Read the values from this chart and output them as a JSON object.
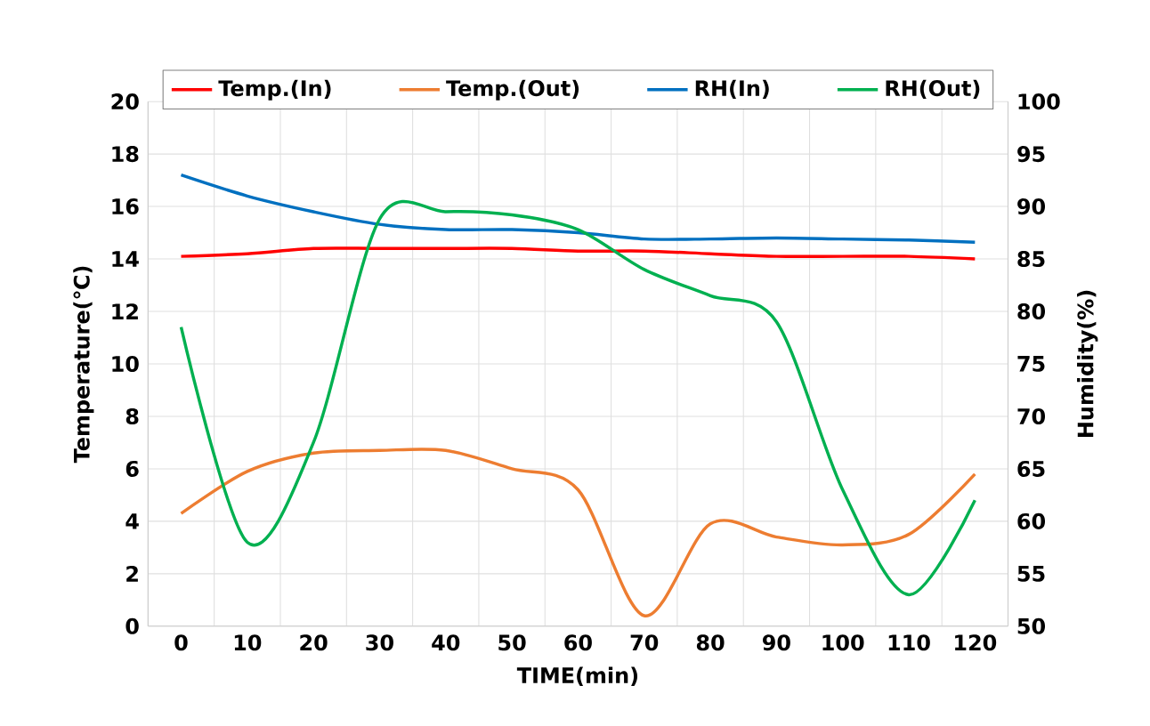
{
  "chart_data": {
    "type": "line",
    "xlabel": "TIME(min)",
    "ylabel": "Temperature(℃)",
    "y2label": "Humidity(%)",
    "categories": [
      "0",
      "10",
      "20",
      "30",
      "40",
      "50",
      "60",
      "70",
      "80",
      "90",
      "100",
      "110",
      "120"
    ],
    "series": [
      {
        "name": "Temp.(In)",
        "color": "#ff0000",
        "values": [
          14.1,
          14.2,
          14.4,
          14.4,
          14.4,
          14.4,
          14.3,
          14.3,
          14.2,
          14.1,
          14.1,
          14.1,
          14.0
        ]
      },
      {
        "name": "Temp.(Out)",
        "color": "#ed7d31",
        "values": [
          4.3,
          5.9,
          6.6,
          6.7,
          6.7,
          6.0,
          5.2,
          0.4,
          3.9,
          3.4,
          3.1,
          3.5,
          5.8
        ]
      },
      {
        "name": "RH(In)",
        "color": "#0070c0",
        "axis": "y2",
        "values": [
          93.0,
          91.0,
          89.5,
          88.3,
          87.8,
          87.8,
          87.5,
          86.9,
          86.9,
          87.0,
          86.9,
          86.8,
          86.6
        ]
      },
      {
        "name": "RH(Out)",
        "color": "#00b050",
        "axis": "y2",
        "values": [
          78.5,
          58.0,
          67.5,
          88.8,
          89.5,
          89.2,
          87.8,
          84.0,
          81.5,
          79.0,
          63.0,
          53.0,
          62.0
        ]
      }
    ],
    "ylim": [
      0,
      20
    ],
    "yticks": [
      0,
      2,
      4,
      6,
      8,
      10,
      12,
      14,
      16,
      18,
      20
    ],
    "y2lim": [
      50,
      100
    ],
    "y2ticks": [
      50,
      55,
      60,
      65,
      70,
      75,
      80,
      85,
      90,
      95,
      100
    ],
    "grid": true,
    "legend": "top",
    "marker": "none",
    "line_style": "solid"
  }
}
